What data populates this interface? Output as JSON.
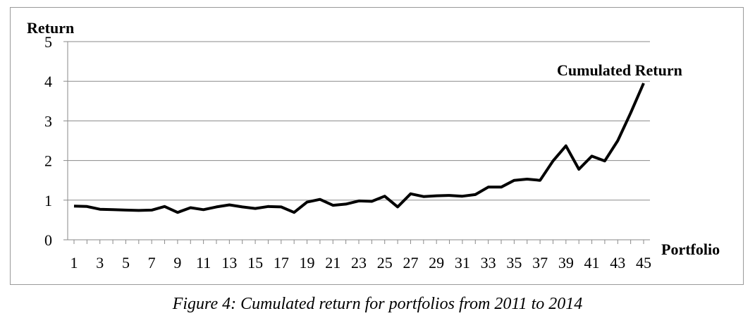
{
  "caption": "Figure 4: Cumulated return for portfolios from 2011 to 2014",
  "chart_data": {
    "type": "line",
    "ylabel": "Return",
    "xlabel": "Portfolio",
    "ylim": [
      0,
      5
    ],
    "yticks": [
      "0",
      "1",
      "2",
      "3",
      "4",
      "5"
    ],
    "xlim": [
      1,
      45
    ],
    "xticks": [
      "1",
      "3",
      "5",
      "7",
      "9",
      "11",
      "13",
      "15",
      "17",
      "19",
      "21",
      "23",
      "25",
      "27",
      "29",
      "31",
      "33",
      "35",
      "37",
      "39",
      "41",
      "43",
      "45"
    ],
    "grid": "horizontal",
    "series": [
      {
        "name": "Cumulated Return",
        "color": "#000000",
        "x": [
          1,
          2,
          3,
          4,
          5,
          6,
          7,
          8,
          9,
          10,
          11,
          12,
          13,
          14,
          15,
          16,
          17,
          18,
          19,
          20,
          21,
          22,
          23,
          24,
          25,
          26,
          27,
          28,
          29,
          30,
          31,
          32,
          33,
          34,
          35,
          36,
          37,
          38,
          39,
          40,
          41,
          42,
          43,
          44,
          45
        ],
        "values": [
          0.85,
          0.84,
          0.77,
          0.76,
          0.75,
          0.74,
          0.75,
          0.84,
          0.69,
          0.81,
          0.76,
          0.83,
          0.88,
          0.83,
          0.79,
          0.84,
          0.83,
          0.69,
          0.95,
          1.02,
          0.87,
          0.9,
          0.98,
          0.97,
          1.1,
          0.83,
          1.16,
          1.09,
          1.11,
          1.12,
          1.1,
          1.14,
          1.33,
          1.33,
          1.5,
          1.53,
          1.5,
          1.99,
          2.37,
          1.78,
          2.11,
          1.99,
          2.5,
          3.2,
          3.95
        ]
      }
    ]
  }
}
